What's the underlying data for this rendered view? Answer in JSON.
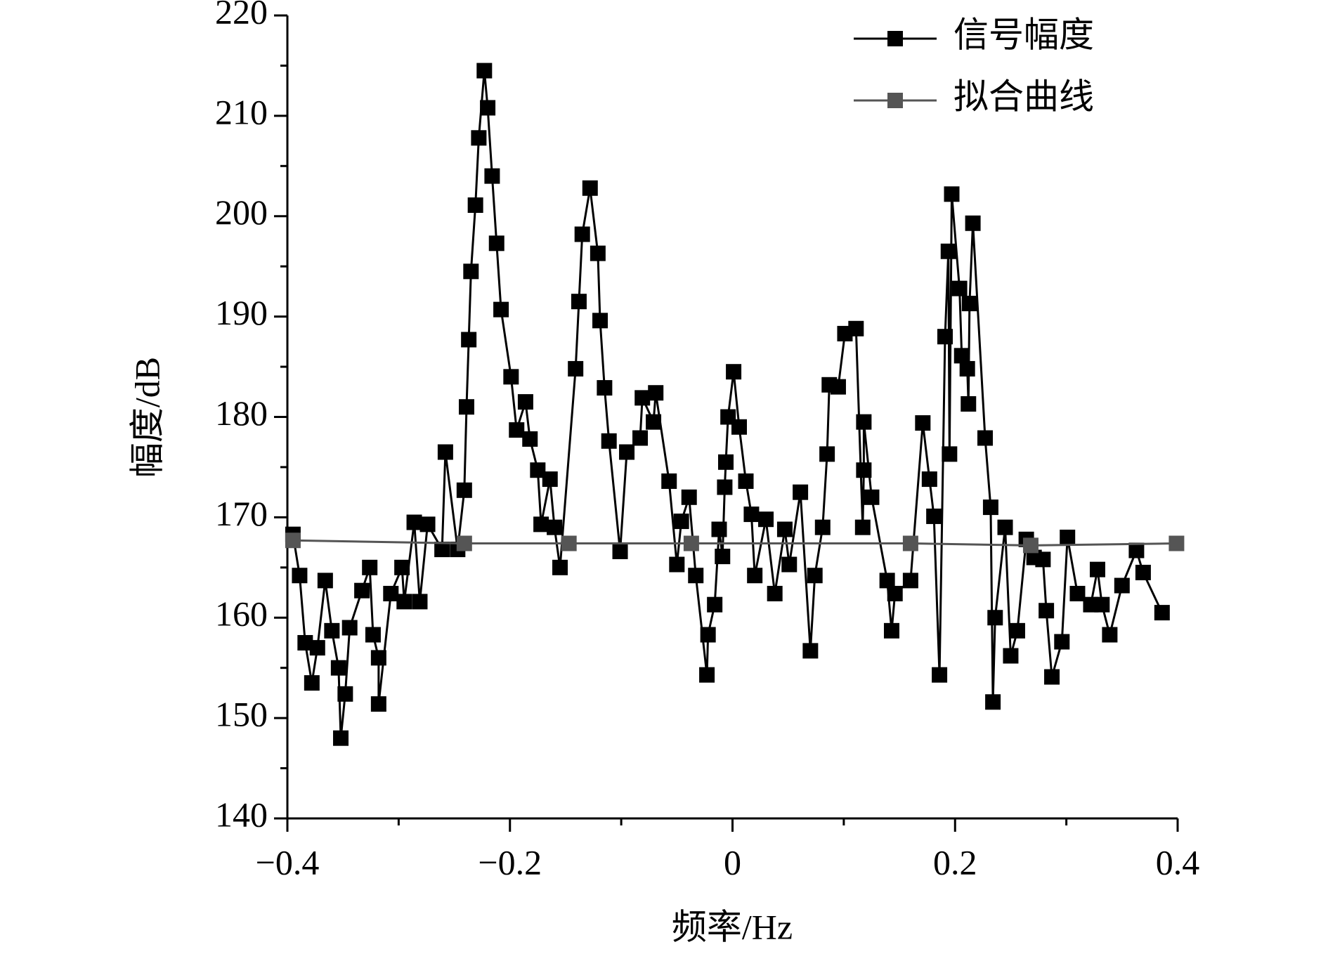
{
  "chart_data": {
    "type": "line",
    "x_label": "频率/Hz",
    "y_label": "幅度/dB",
    "xlim": [
      -0.4,
      0.4
    ],
    "xticks": [
      {
        "value": -0.4,
        "label": "−0.4"
      },
      {
        "value": -0.2,
        "label": "−0.2"
      },
      0,
      0.2,
      0.4
    ],
    "ylim": [
      140,
      220
    ],
    "yticks": [
      140,
      150,
      160,
      170,
      180,
      190,
      200,
      210,
      220
    ],
    "legend": "upper right",
    "series": [
      {
        "name": "信号幅度",
        "color": "#000000",
        "x": [
          -0.395,
          -0.389,
          -0.384,
          -0.378,
          -0.373,
          -0.366,
          -0.36,
          -0.354,
          -0.352,
          -0.348,
          -0.344,
          -0.333,
          -0.326,
          -0.323,
          -0.318,
          -0.318,
          -0.307,
          -0.297,
          -0.295,
          -0.286,
          -0.281,
          -0.274,
          -0.261,
          -0.258,
          -0.247,
          -0.241,
          -0.239,
          -0.237,
          -0.235,
          -0.231,
          -0.228,
          -0.223,
          -0.22,
          -0.216,
          -0.212,
          -0.208,
          -0.199,
          -0.194,
          -0.186,
          -0.182,
          -0.175,
          -0.172,
          -0.164,
          -0.16,
          -0.155,
          -0.141,
          -0.138,
          -0.135,
          -0.128,
          -0.121,
          -0.119,
          -0.115,
          -0.111,
          -0.101,
          -0.095,
          -0.083,
          -0.081,
          -0.071,
          -0.069,
          -0.057,
          -0.05,
          -0.046,
          -0.039,
          -0.033,
          -0.023,
          -0.022,
          -0.016,
          -0.012,
          -0.009,
          -0.007,
          -0.006,
          -0.004,
          0.001,
          0.006,
          0.012,
          0.017,
          0.02,
          0.03,
          0.038,
          0.047,
          0.051,
          0.061,
          0.07,
          0.074,
          0.081,
          0.085,
          0.087,
          0.095,
          0.101,
          0.111,
          0.117,
          0.118,
          0.118,
          0.125,
          0.139,
          0.143,
          0.146,
          0.16,
          0.171,
          0.177,
          0.181,
          0.186,
          0.191,
          0.194,
          0.195,
          0.197,
          0.204,
          0.206,
          0.211,
          0.212,
          0.213,
          0.216,
          0.227,
          0.232,
          0.234,
          0.236,
          0.245,
          0.25,
          0.256,
          0.264,
          0.271,
          0.279,
          0.282,
          0.287,
          0.296,
          0.301,
          0.31,
          0.322,
          0.328,
          0.332,
          0.339,
          0.35,
          0.363,
          0.369,
          0.386
        ],
        "values": [
          168.3,
          164.2,
          157.5,
          153.5,
          157,
          163.7,
          158.7,
          155,
          148,
          152.4,
          159,
          162.7,
          165,
          158.3,
          156,
          151.4,
          162.4,
          165,
          161.6,
          169.5,
          161.6,
          169.3,
          166.8,
          176.5,
          166.8,
          172.7,
          181,
          187.7,
          194.5,
          201.1,
          207.8,
          214.5,
          210.8,
          204,
          197.3,
          190.7,
          184,
          178.7,
          181.5,
          177.8,
          174.7,
          169.3,
          173.8,
          169,
          165,
          184.8,
          191.5,
          198.2,
          202.8,
          196.3,
          189.6,
          182.9,
          177.6,
          166.6,
          176.5,
          177.9,
          181.9,
          179.5,
          182.4,
          173.6,
          165.3,
          169.6,
          172,
          164.2,
          154.3,
          158.3,
          161.3,
          168.8,
          166.1,
          173,
          175.5,
          180,
          184.5,
          179,
          173.6,
          170.3,
          164.2,
          169.8,
          162.4,
          168.8,
          165.3,
          172.5,
          156.7,
          164.2,
          169,
          176.3,
          183.2,
          183,
          188.3,
          188.8,
          169,
          174.7,
          179.5,
          172,
          163.7,
          158.7,
          162.4,
          163.7,
          179.4,
          173.8,
          170.1,
          154.3,
          188,
          196.5,
          176.3,
          202.2,
          192.8,
          186.1,
          184.8,
          181.3,
          191.3,
          199.3,
          177.9,
          171,
          151.6,
          160,
          169,
          156.2,
          158.7,
          167.8,
          166,
          165.8,
          160.7,
          154.1,
          157.6,
          168,
          162.4,
          161.3,
          164.8,
          161.3,
          158.3,
          163.2,
          166.7,
          164.5,
          160.5
        ]
      },
      {
        "name": "拟合曲线",
        "color": "#555555",
        "x": [
          -0.395,
          -0.241,
          -0.147,
          -0.037,
          0.16,
          0.268,
          0.399
        ],
        "values": [
          167.7,
          167.4,
          167.4,
          167.4,
          167.4,
          167.2,
          167.4
        ]
      }
    ]
  }
}
